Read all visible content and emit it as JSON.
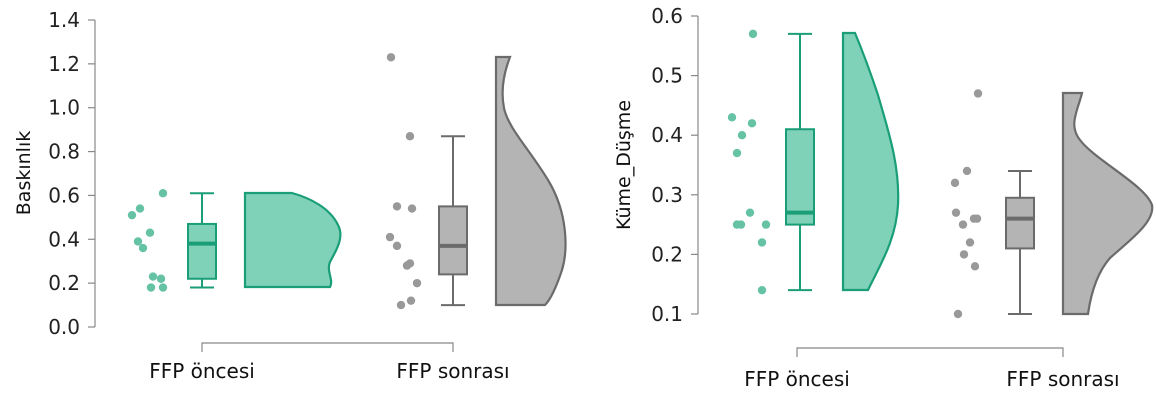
{
  "colors": {
    "before": "#1a9e77",
    "before_fill": "#7fd1b8",
    "before_point": "#66c2a5",
    "after": "#6b6b6b",
    "after_fill": "#b4b4b4",
    "after_point": "#999999",
    "axis": "#888888"
  },
  "chart_data": [
    {
      "type": "raincloud",
      "ylabel": "Baskınlık",
      "ylim": [
        0,
        1.4
      ],
      "yticks": [
        "0.0",
        "0.2",
        "0.4",
        "0.6",
        "0.8",
        "1.0",
        "1.2",
        "1.4"
      ],
      "categories": [
        "FFP öncesi",
        "FFP sonrası"
      ],
      "groups": [
        {
          "name": "FFP öncesi",
          "points": [
            0.51,
            0.54,
            0.39,
            0.36,
            0.43,
            0.61,
            0.23,
            0.22,
            0.18,
            0.18
          ],
          "box": {
            "min": 0.18,
            "q1": 0.22,
            "median": 0.38,
            "q3": 0.47,
            "max": 0.61
          }
        },
        {
          "name": "FFP sonrası",
          "points": [
            1.23,
            0.87,
            0.55,
            0.54,
            0.41,
            0.37,
            0.29,
            0.28,
            0.2,
            0.12,
            0.1
          ],
          "box": {
            "min": 0.1,
            "q1": 0.24,
            "median": 0.37,
            "q3": 0.55,
            "max": 0.87
          }
        }
      ]
    },
    {
      "type": "raincloud",
      "ylabel": "Küme_Düşme",
      "ylim": [
        0.1,
        0.6
      ],
      "yticks": [
        "0.1",
        "0.2",
        "0.3",
        "0.4",
        "0.5",
        "0.6"
      ],
      "categories": [
        "FFP öncesi",
        "FFP sonrası"
      ],
      "groups": [
        {
          "name": "FFP öncesi",
          "points": [
            0.57,
            0.43,
            0.42,
            0.4,
            0.37,
            0.27,
            0.25,
            0.25,
            0.25,
            0.22,
            0.14
          ],
          "box": {
            "min": 0.14,
            "q1": 0.25,
            "median": 0.27,
            "q3": 0.41,
            "max": 0.57
          }
        },
        {
          "name": "FFP sonrası",
          "points": [
            0.47,
            0.34,
            0.32,
            0.27,
            0.26,
            0.26,
            0.25,
            0.22,
            0.2,
            0.18,
            0.1
          ],
          "box": {
            "min": 0.1,
            "q1": 0.21,
            "median": 0.26,
            "q3": 0.295,
            "max": 0.34
          }
        }
      ]
    }
  ]
}
